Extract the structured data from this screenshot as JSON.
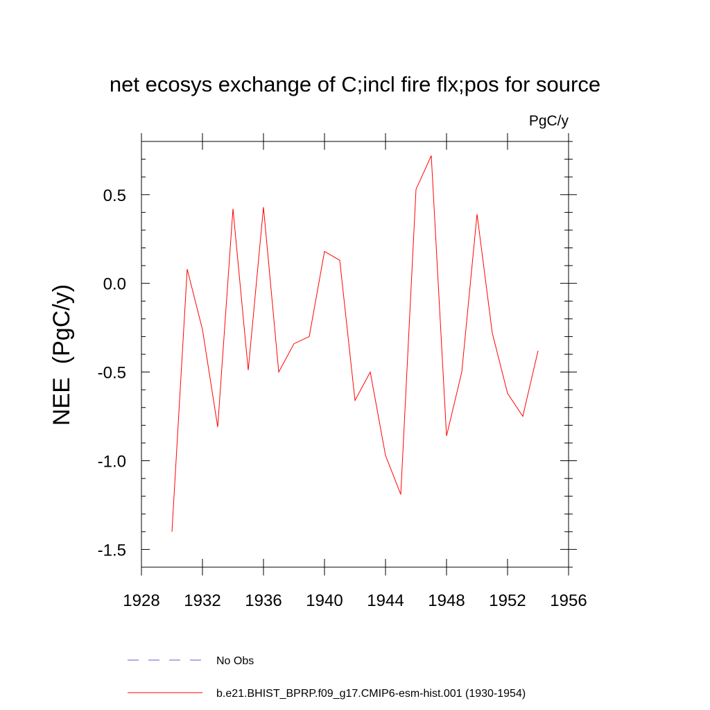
{
  "chart_data": {
    "type": "line",
    "title": "net ecosys exchange of C;incl fire flx;pos for source",
    "units": "PgC/y",
    "ylabel": "NEE  (PgC/y)",
    "xlabel": "",
    "xlim": [
      1928,
      1956
    ],
    "ylim": [
      -1.6,
      0.8
    ],
    "xticks": [
      1928,
      1932,
      1936,
      1940,
      1944,
      1948,
      1952,
      1956
    ],
    "xtick_labels": [
      "1928",
      "1932",
      "1936",
      "1940",
      "1944",
      "1948",
      "1952",
      "1956"
    ],
    "yticks": [
      0.5,
      0.0,
      -0.5,
      -1.0,
      -1.5
    ],
    "ytick_labels": [
      "0.5",
      "0.0",
      "-0.5",
      "-1.0",
      "-1.5"
    ],
    "series": [
      {
        "name": "b.e21.BHIST_BPRP.f09_g17.CMIP6-esm-hist.001 (1930-1954)",
        "color": "#ff0000",
        "dash": "solid",
        "x": [
          1930,
          1931,
          1932,
          1933,
          1934,
          1935,
          1936,
          1937,
          1938,
          1939,
          1940,
          1941,
          1942,
          1943,
          1944,
          1945,
          1946,
          1947,
          1948,
          1949,
          1950,
          1951,
          1952,
          1953,
          1954
        ],
        "values": [
          -1.4,
          0.08,
          -0.26,
          -0.81,
          0.42,
          -0.49,
          0.43,
          -0.5,
          -0.34,
          -0.3,
          0.18,
          0.13,
          -0.66,
          -0.5,
          -0.97,
          -1.19,
          0.53,
          0.72,
          -0.86,
          -0.5,
          0.39,
          -0.28,
          -0.62,
          -0.75,
          -0.38
        ]
      }
    ],
    "legend": [
      {
        "label": "No Obs",
        "color": "#6a5acd",
        "dash": "dashed"
      },
      {
        "label": "b.e21.BHIST_BPRP.f09_g17.CMIP6-esm-hist.001 (1930-1954)",
        "color": "#ff0000",
        "dash": "solid"
      }
    ],
    "legend_position": "bottom"
  }
}
